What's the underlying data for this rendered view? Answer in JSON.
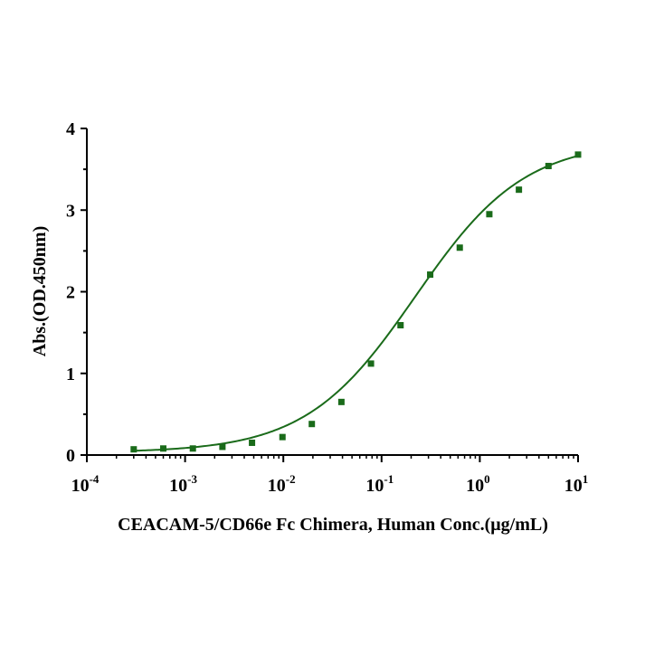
{
  "chart_data": {
    "type": "scatter",
    "title": "",
    "xlabel": "CEACAM-5/CD66e Fc Chimera, Human Conc.(μg/mL)",
    "ylabel": "Abs.(OD.450nm)",
    "xscale": "log",
    "xlim": [
      0.0001,
      10
    ],
    "ylim": [
      0,
      4
    ],
    "x_ticks": [
      {
        "base": "10",
        "exp": "-4"
      },
      {
        "base": "10",
        "exp": "-3"
      },
      {
        "base": "10",
        "exp": "-2"
      },
      {
        "base": "10",
        "exp": "-1"
      },
      {
        "base": "10",
        "exp": "0"
      },
      {
        "base": "10",
        "exp": "1"
      }
    ],
    "y_ticks": [
      "0",
      "1",
      "2",
      "3",
      "4"
    ],
    "grid": false,
    "legend": "none",
    "color": "#1a6b1a",
    "series": [
      {
        "x": [
          0.0003,
          0.0006,
          0.0012,
          0.0024,
          0.0048,
          0.0098,
          0.0195,
          0.039,
          0.078,
          0.156,
          0.3125,
          0.625,
          1.25,
          2.5,
          5,
          10
        ],
        "y": [
          0.07,
          0.08,
          0.08,
          0.1,
          0.15,
          0.22,
          0.38,
          0.65,
          1.12,
          1.59,
          2.21,
          2.54,
          2.95,
          3.25,
          3.54,
          3.68
        ]
      }
    ],
    "fit_curve": {
      "model": "4PL",
      "bottom": 0.03,
      "top": 3.85,
      "ec50": 0.22,
      "hill": 0.78
    }
  }
}
